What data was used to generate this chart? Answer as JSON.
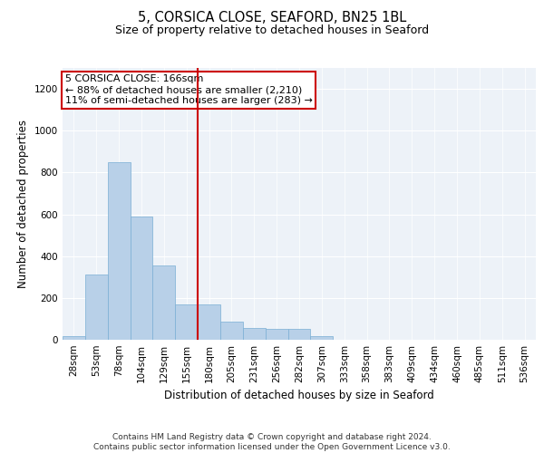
{
  "title_line1": "5, CORSICA CLOSE, SEAFORD, BN25 1BL",
  "title_line2": "Size of property relative to detached houses in Seaford",
  "xlabel": "Distribution of detached houses by size in Seaford",
  "ylabel": "Number of detached properties",
  "footer_line1": "Contains HM Land Registry data © Crown copyright and database right 2024.",
  "footer_line2": "Contains public sector information licensed under the Open Government Licence v3.0.",
  "bar_labels": [
    "28sqm",
    "53sqm",
    "78sqm",
    "104sqm",
    "129sqm",
    "155sqm",
    "180sqm",
    "205sqm",
    "231sqm",
    "256sqm",
    "282sqm",
    "307sqm",
    "333sqm",
    "358sqm",
    "383sqm",
    "409sqm",
    "434sqm",
    "460sqm",
    "485sqm",
    "511sqm",
    "536sqm"
  ],
  "bar_values": [
    18,
    310,
    850,
    590,
    355,
    170,
    170,
    85,
    55,
    50,
    50,
    18,
    0,
    0,
    0,
    0,
    0,
    0,
    0,
    0,
    0
  ],
  "bar_color": "#b8d0e8",
  "bar_edge_color": "#7aafd4",
  "vline_x_index": 6,
  "vline_color": "#cc0000",
  "annotation_text": "5 CORSICA CLOSE: 166sqm\n← 88% of detached houses are smaller (2,210)\n11% of semi-detached houses are larger (283) →",
  "ylim": [
    0,
    1300
  ],
  "yticks": [
    0,
    200,
    400,
    600,
    800,
    1000,
    1200
  ],
  "background_color": "#edf2f8",
  "grid_color": "#ffffff",
  "title_fontsize": 10.5,
  "subtitle_fontsize": 9,
  "axis_label_fontsize": 8.5,
  "tick_fontsize": 7.5,
  "annotation_fontsize": 8,
  "footer_fontsize": 6.5
}
